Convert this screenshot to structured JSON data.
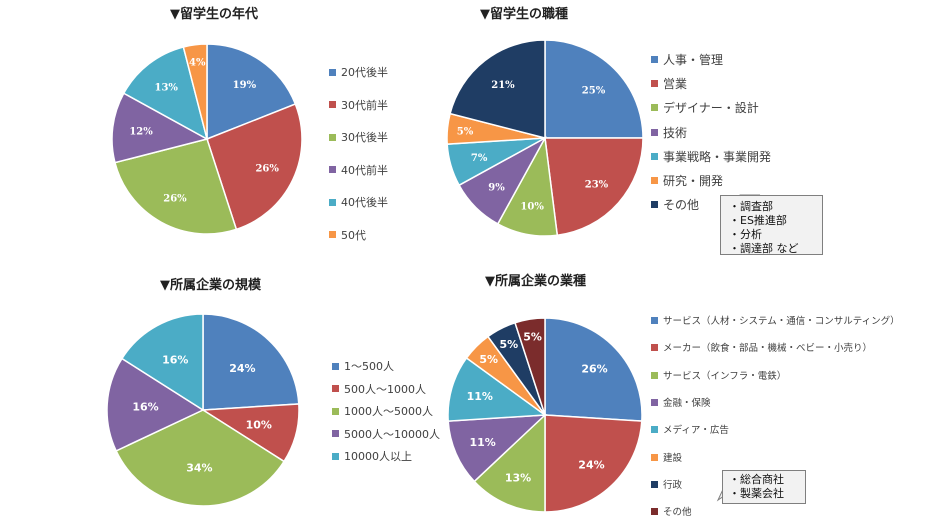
{
  "charts": [
    {
      "id": "age",
      "chart_data": {
        "type": "pie",
        "title": "▼留学生の年代",
        "categories": [
          "20代後半",
          "30代前半",
          "30代後半",
          "40代前半",
          "40代後半",
          "50代"
        ],
        "values": [
          19,
          26,
          26,
          12,
          13,
          4
        ],
        "labels": [
          "19%",
          "26%",
          "26%",
          "12%",
          "13%",
          "4%"
        ],
        "colors": [
          "#4f81bd",
          "#c0504d",
          "#9bbb59",
          "#8064a2",
          "#4bacc6",
          "#f79646"
        ],
        "legend": "right"
      }
    },
    {
      "id": "job",
      "chart_data": {
        "type": "pie",
        "title": "▼留学生の職種",
        "categories": [
          "人事・管理",
          "営業",
          "デザイナー・設計",
          "技術",
          "事業戦略・事業開発",
          "研究・開発",
          "その他"
        ],
        "values": [
          25,
          23,
          10,
          9,
          7,
          5,
          21
        ],
        "labels": [
          "25%",
          "23%",
          "10%",
          "9%",
          "7%",
          "5%",
          "21%"
        ],
        "colors": [
          "#4f81bd",
          "#c0504d",
          "#9bbb59",
          "#8064a2",
          "#4bacc6",
          "#f79646",
          "#1f3d64"
        ],
        "legend": "right"
      },
      "callout": [
        "・調査部",
        "・ES推進部",
        "・分析",
        "・調達部 など"
      ]
    },
    {
      "id": "size",
      "chart_data": {
        "type": "pie",
        "title": "▼所属企業の規模",
        "categories": [
          "1～500人",
          "500人～1000人",
          "1000人～5000人",
          "5000人～10000人",
          "10000人以上"
        ],
        "values": [
          24,
          10,
          34,
          16,
          16
        ],
        "labels": [
          "24%",
          "10%",
          "34%",
          "16%",
          "16%"
        ],
        "colors": [
          "#4f81bd",
          "#c0504d",
          "#9bbb59",
          "#8064a2",
          "#4bacc6"
        ],
        "legend": "right"
      }
    },
    {
      "id": "industry",
      "chart_data": {
        "type": "pie",
        "title": "▼所属企業の業種",
        "categories": [
          "サービス（人材・システム・通信・コンサルティング）",
          "メーカー（飲食・部品・機械・ベビー・小売り）",
          "サービス（インフラ・電鉄）",
          "金融・保険",
          "メディア・広告",
          "建設",
          "行政",
          "その他"
        ],
        "values": [
          26,
          24,
          13,
          11,
          11,
          5,
          5,
          5
        ],
        "labels": [
          "26%",
          "24%",
          "13%",
          "11%",
          "11%",
          "5%",
          "5%",
          "5%"
        ],
        "colors": [
          "#4f81bd",
          "#c0504d",
          "#9bbb59",
          "#8064a2",
          "#4bacc6",
          "#f79646",
          "#1f3d64",
          "#7b2c2c"
        ],
        "legend": "right"
      },
      "callout": [
        "・総合商社",
        "・製薬会社"
      ]
    }
  ]
}
